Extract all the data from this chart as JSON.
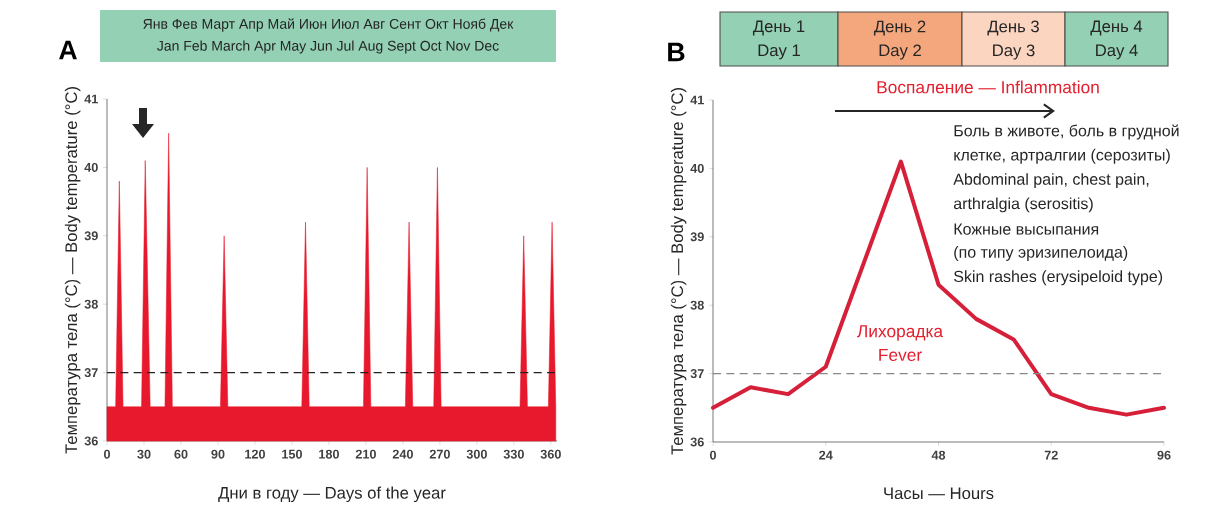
{
  "chart_data": [
    {
      "type": "area",
      "xlabel": "Дни в году — Days of the year",
      "ylabel": "Температура тела (°C) — Body temperature (°C)",
      "x": [
        0,
        7,
        10,
        13,
        28,
        31,
        35,
        47,
        50,
        53,
        92,
        95,
        98,
        158,
        161,
        164,
        208,
        211,
        214,
        242,
        245,
        248,
        265,
        268,
        271,
        335,
        338,
        341,
        358,
        361,
        364
      ],
      "values": [
        36.5,
        36.5,
        39.8,
        36.5,
        36.5,
        40.1,
        36.5,
        36.5,
        40.5,
        36.5,
        36.5,
        39.0,
        36.5,
        36.5,
        39.2,
        36.5,
        36.5,
        40.0,
        36.5,
        36.5,
        39.2,
        36.5,
        36.5,
        40.0,
        36.5,
        36.5,
        39.0,
        36.5,
        36.5,
        39.2,
        36.5
      ],
      "color": "#e8192c",
      "xlim": [
        0,
        365
      ],
      "ylim": [
        36,
        41
      ],
      "xticks": [
        0,
        30,
        60,
        90,
        120,
        150,
        180,
        210,
        240,
        270,
        300,
        330,
        360
      ],
      "yticks": [
        36,
        37,
        38,
        39,
        40,
        41
      ],
      "ref_lines": [
        {
          "axis": "y",
          "value": 37,
          "color": "#222222",
          "line_style": "dashed"
        }
      ],
      "annotations": [
        "A",
        "Янв Фев Март Апр Май Июн Июл Авг Сент Окт Нояб Дек",
        "Jan Feb March Apr May Jun Jul Aug Sept Oct Nov Dec"
      ]
    },
    {
      "type": "line",
      "xlabel": "Часы — Hours",
      "ylabel": "Температура тела (°C) — Body temperature (°C)",
      "x": [
        0,
        8,
        16,
        24,
        40,
        48,
        56,
        64,
        72,
        80,
        88,
        96
      ],
      "values": [
        36.5,
        36.8,
        36.7,
        37.1,
        40.1,
        38.3,
        37.8,
        37.5,
        36.7,
        36.5,
        36.4,
        36.5
      ],
      "color": "#d6203a",
      "xlim": [
        0,
        96
      ],
      "ylim": [
        36,
        41
      ],
      "xticks": [
        0,
        24,
        48,
        72,
        96
      ],
      "yticks": [
        36,
        37,
        38,
        39,
        40,
        41
      ],
      "ref_lines": [
        {
          "axis": "y",
          "value": 37,
          "color": "#888888",
          "line_style": "dashed"
        }
      ],
      "annotations": [
        "B",
        "День 1",
        "Day 1",
        "День 2",
        "Day 2",
        "День 3",
        "Day 3",
        "День 4",
        "Day 4",
        "Воспаление — Inflammation",
        "Боль в животе, боль в грудной",
        "клетке, артралгии (серозиты)",
        "Abdominal pain, chest pain,",
        "arthralgia (serositis)",
        "Кожные высыпания",
        "(по типу эризипелоида)",
        "Skin rashes (erysipeloid type)",
        "Лихорадка",
        "Fever"
      ]
    }
  ]
}
